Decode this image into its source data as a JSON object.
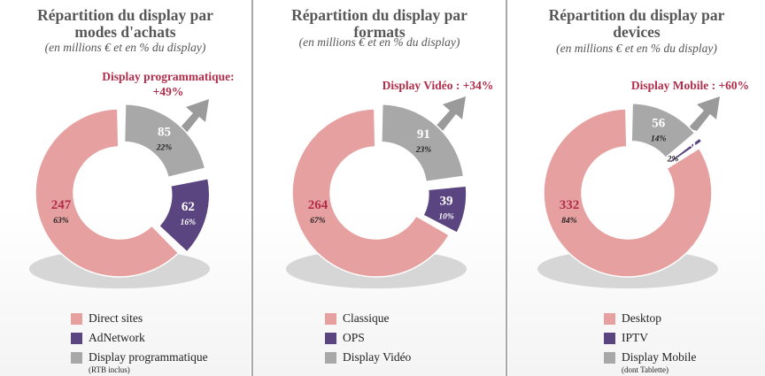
{
  "colors": {
    "pink": "#e7a0a0",
    "purple": "#5a4580",
    "gray": "#a8a8a8",
    "callout": "#b12e4b"
  },
  "chart_data": [
    {
      "type": "pie",
      "title": "Répartition du display par modes d'achats",
      "subtitle": "(en millions € et en % du display)",
      "callout": "Display programmatique: +49%",
      "slices": [
        {
          "label": "Direct sites",
          "value": 247,
          "pct": "63%",
          "color": "#e7a0a0"
        },
        {
          "label": "AdNetwork",
          "value": 62,
          "pct": "16%",
          "color": "#5a4580"
        },
        {
          "label": "Display programmatique",
          "value": 85,
          "pct": "22%",
          "color": "#a8a8a8",
          "note": "(RTB inclus)"
        }
      ]
    },
    {
      "type": "pie",
      "title": "Répartition du display par formats",
      "subtitle": "(en millions € et en % du display)",
      "callout": "Display Vidéo : +34%",
      "slices": [
        {
          "label": "Classique",
          "value": 264,
          "pct": "67%",
          "color": "#e7a0a0"
        },
        {
          "label": "OPS",
          "value": 39,
          "pct": "10%",
          "color": "#5a4580"
        },
        {
          "label": "Display Vidéo",
          "value": 91,
          "pct": "23%",
          "color": "#a8a8a8"
        }
      ]
    },
    {
      "type": "pie",
      "title": "Répartition du display par devices",
      "subtitle": "(en millions € et en % du display)",
      "callout": "Display Mobile : +60%",
      "slices": [
        {
          "label": "Desktop",
          "value": 332,
          "pct": "84%",
          "color": "#e7a0a0"
        },
        {
          "label": "IPTV",
          "value": 6,
          "pct": "2%",
          "color": "#5a4580"
        },
        {
          "label": "Display Mobile",
          "value": 56,
          "pct": "14%",
          "color": "#a8a8a8",
          "note": "(dont Tablette)"
        }
      ]
    }
  ]
}
